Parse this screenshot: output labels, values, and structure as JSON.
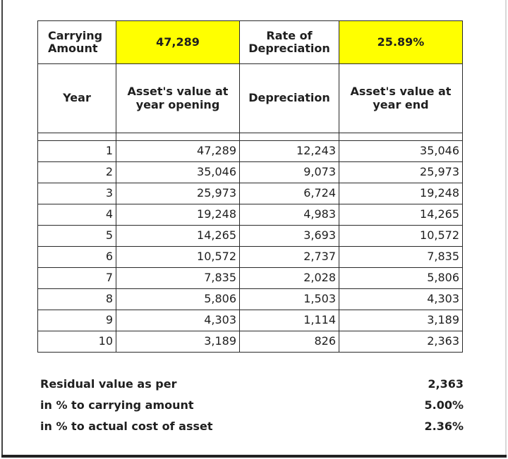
{
  "header": {
    "carrying_amount_label": "Carrying Amount",
    "carrying_amount_value": "47,289",
    "rate_label": "Rate of Depreciation",
    "rate_value": "25.89%",
    "col_year": "Year",
    "col_opening": "Asset's value at year opening",
    "col_depreciation": "Depreciation",
    "col_end": "Asset's value at year end"
  },
  "rows": [
    {
      "year": "1",
      "opening": "47,289",
      "depreciation": "12,243",
      "end": "35,046"
    },
    {
      "year": "2",
      "opening": "35,046",
      "depreciation": "9,073",
      "end": "25,973"
    },
    {
      "year": "3",
      "opening": "25,973",
      "depreciation": "6,724",
      "end": "19,248"
    },
    {
      "year": "4",
      "opening": "19,248",
      "depreciation": "4,983",
      "end": "14,265"
    },
    {
      "year": "5",
      "opening": "14,265",
      "depreciation": "3,693",
      "end": "10,572"
    },
    {
      "year": "6",
      "opening": "10,572",
      "depreciation": "2,737",
      "end": "7,835"
    },
    {
      "year": "7",
      "opening": "7,835",
      "depreciation": "2,028",
      "end": "5,806"
    },
    {
      "year": "8",
      "opening": "5,806",
      "depreciation": "1,503",
      "end": "4,303"
    },
    {
      "year": "9",
      "opening": "4,303",
      "depreciation": "1,114",
      "end": "3,189"
    },
    {
      "year": "10",
      "opening": "3,189",
      "depreciation": "826",
      "end": "2,363"
    }
  ],
  "summary": [
    {
      "label": "Residual value as per",
      "value": "2,363"
    },
    {
      "label": "in % to carrying amount",
      "value": "5.00%"
    },
    {
      "label": "in % to actual cost of asset",
      "value": "2.36%"
    }
  ],
  "colors": {
    "highlight": "#ffff00"
  }
}
